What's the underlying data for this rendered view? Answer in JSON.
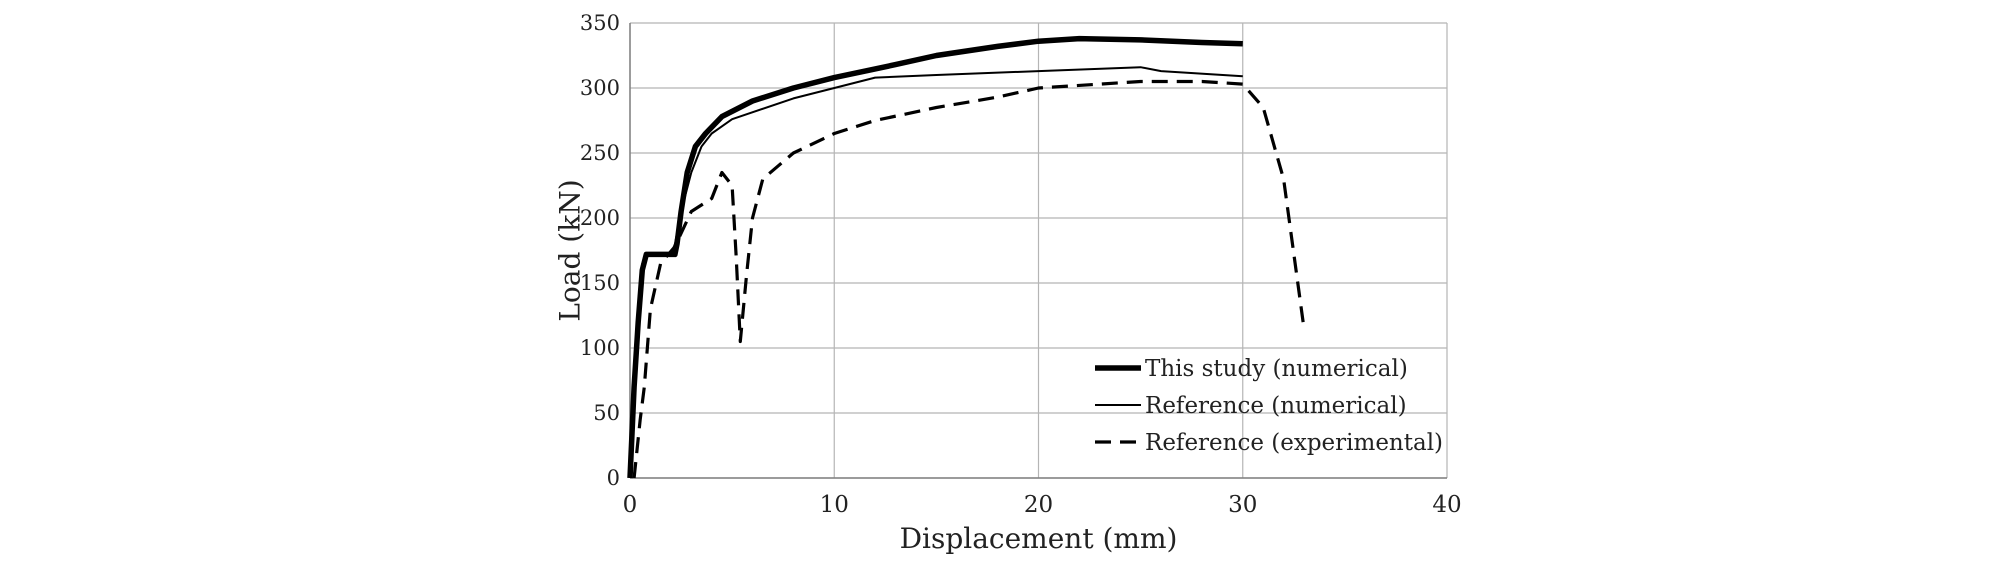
{
  "chart_data": {
    "type": "line",
    "title": "",
    "xlabel": "Displacement (mm)",
    "ylabel": "Load (kN)",
    "xlim": [
      0,
      40
    ],
    "ylim": [
      0,
      350
    ],
    "x_ticks": [
      0,
      10,
      20,
      30,
      40
    ],
    "y_ticks": [
      0,
      50,
      100,
      150,
      200,
      250,
      300,
      350
    ],
    "grid": true,
    "legend_position": "bottom-right",
    "series": [
      {
        "name": "This study (numerical)",
        "style": "thick-solid",
        "color": "#000000",
        "points": [
          [
            0,
            0
          ],
          [
            0.2,
            70
          ],
          [
            0.4,
            120
          ],
          [
            0.6,
            160
          ],
          [
            0.8,
            172
          ],
          [
            1.5,
            172
          ],
          [
            2.2,
            172
          ],
          [
            2.3,
            180
          ],
          [
            2.5,
            205
          ],
          [
            2.8,
            235
          ],
          [
            3.2,
            255
          ],
          [
            3.7,
            265
          ],
          [
            4.5,
            278
          ],
          [
            6,
            290
          ],
          [
            8,
            300
          ],
          [
            10,
            308
          ],
          [
            13,
            318
          ],
          [
            15,
            325
          ],
          [
            18,
            332
          ],
          [
            20,
            336
          ],
          [
            22,
            338
          ],
          [
            25,
            337
          ],
          [
            28,
            335
          ],
          [
            30,
            334
          ]
        ]
      },
      {
        "name": "Reference (numerical)",
        "style": "thin-solid",
        "color": "#000000",
        "points": [
          [
            0,
            0
          ],
          [
            0.3,
            90
          ],
          [
            0.6,
            165
          ],
          [
            0.8,
            172
          ],
          [
            2.0,
            172
          ],
          [
            2.2,
            180
          ],
          [
            2.5,
            205
          ],
          [
            3.0,
            235
          ],
          [
            3.5,
            255
          ],
          [
            4.0,
            265
          ],
          [
            5,
            276
          ],
          [
            8,
            292
          ],
          [
            10,
            300
          ],
          [
            12,
            308
          ],
          [
            15,
            310
          ],
          [
            20,
            313
          ],
          [
            25,
            316
          ],
          [
            26,
            313
          ],
          [
            30,
            309
          ]
        ]
      },
      {
        "name": "Reference (experimental)",
        "style": "dashed",
        "color": "#000000",
        "points": [
          [
            0.2,
            0
          ],
          [
            0.5,
            45
          ],
          [
            0.7,
            70
          ],
          [
            1.0,
            130
          ],
          [
            1.5,
            165
          ],
          [
            2.2,
            178
          ],
          [
            3.0,
            205
          ],
          [
            4.0,
            215
          ],
          [
            4.5,
            235
          ],
          [
            5.0,
            225
          ],
          [
            5.2,
            170
          ],
          [
            5.4,
            105
          ],
          [
            5.7,
            155
          ],
          [
            6.0,
            200
          ],
          [
            6.5,
            230
          ],
          [
            8.0,
            250
          ],
          [
            10,
            265
          ],
          [
            12,
            275
          ],
          [
            15,
            285
          ],
          [
            18,
            293
          ],
          [
            20,
            300
          ],
          [
            25,
            305
          ],
          [
            28,
            305
          ],
          [
            30,
            303
          ],
          [
            31,
            285
          ],
          [
            32,
            230
          ],
          [
            33,
            115
          ]
        ]
      }
    ]
  }
}
